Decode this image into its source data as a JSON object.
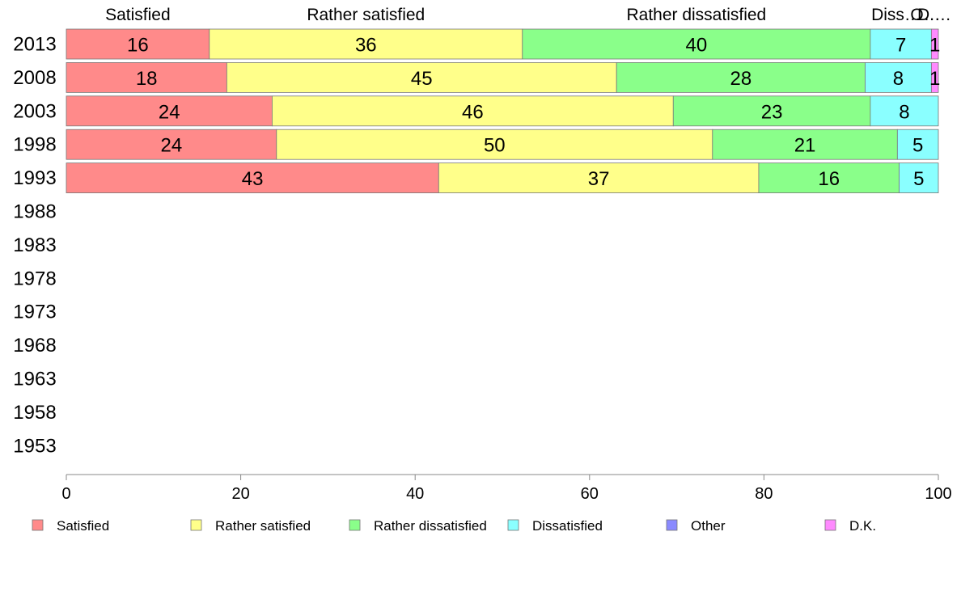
{
  "chart_data": {
    "type": "bar",
    "orientation": "horizontal",
    "stacked": true,
    "categories": [
      "2013",
      "2008",
      "2003",
      "1998",
      "1993",
      "1988",
      "1983",
      "1978",
      "1973",
      "1968",
      "1963",
      "1958",
      "1953"
    ],
    "series": [
      {
        "name": "Satisfied",
        "short": "Satisfied",
        "color": "#ff8a8a",
        "values": [
          16.4,
          18.4,
          23.6,
          24.1,
          42.7,
          null,
          null,
          null,
          null,
          null,
          null,
          null,
          null
        ],
        "labels": [
          "16",
          "18",
          "24",
          "24",
          "43",
          "",
          "",
          "",
          "",
          "",
          "",
          "",
          ""
        ]
      },
      {
        "name": "Rather satisfied",
        "short": "Rather satisfied",
        "color": "#ffff8a",
        "values": [
          35.9,
          44.7,
          46.0,
          50.0,
          36.7,
          null,
          null,
          null,
          null,
          null,
          null,
          null,
          null
        ],
        "labels": [
          "36",
          "45",
          "46",
          "50",
          "37",
          "",
          "",
          "",
          "",
          "",
          "",
          "",
          ""
        ]
      },
      {
        "name": "Rather dissatisfied",
        "short": "Rather dissatisfied",
        "color": "#8aff8a",
        "values": [
          39.9,
          28.5,
          22.6,
          21.2,
          16.1,
          null,
          null,
          null,
          null,
          null,
          null,
          null,
          null
        ],
        "labels": [
          "40",
          "28",
          "23",
          "21",
          "16",
          "",
          "",
          "",
          "",
          "",
          "",
          "",
          ""
        ]
      },
      {
        "name": "Dissatisfied",
        "short": "Diss…",
        "color": "#8affff",
        "values": [
          7.0,
          7.6,
          7.8,
          4.7,
          4.5,
          null,
          null,
          null,
          null,
          null,
          null,
          null,
          null
        ],
        "labels": [
          "7",
          "8",
          "8",
          "5",
          "5",
          "",
          "",
          "",
          "",
          "",
          "",
          "",
          ""
        ]
      },
      {
        "name": "Other",
        "short": "O…",
        "color": "#8a8aff",
        "values": [
          0,
          0,
          0,
          0,
          0,
          null,
          null,
          null,
          null,
          null,
          null,
          null,
          null
        ],
        "labels": [
          "",
          "",
          "",
          "",
          "",
          "",
          "",
          "",
          "",
          "",
          "",
          "",
          ""
        ]
      },
      {
        "name": "D.K.",
        "short": "D.…",
        "color": "#ff8aff",
        "values": [
          0.8,
          0.8,
          0,
          0,
          0,
          null,
          null,
          null,
          null,
          null,
          null,
          null,
          null
        ],
        "labels": [
          "1",
          "1",
          "",
          "",
          "",
          "",
          "",
          "",
          "",
          "",
          "",
          "",
          ""
        ]
      }
    ],
    "xlim": [
      0,
      100
    ],
    "xticks": [
      "0",
      "20",
      "40",
      "60",
      "80",
      "100"
    ],
    "title": "",
    "xlabel": "",
    "ylabel": "",
    "legend_position": "bottom",
    "grid": false
  }
}
